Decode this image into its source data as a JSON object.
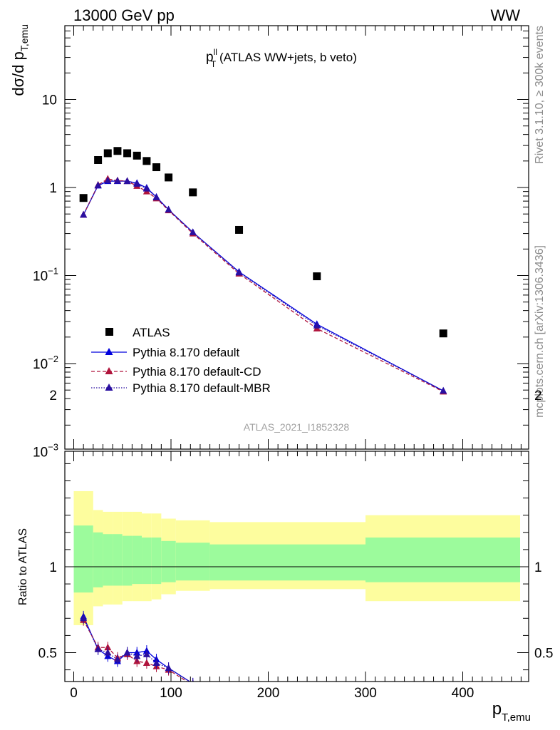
{
  "header": {
    "left": "13000 GeV pp",
    "right": "WW"
  },
  "side_labels": {
    "rivet": "Rivet 3.1.10, ≥ 300k events",
    "mcplots": "mcplots.cern.ch [arXiv:1306.3436]"
  },
  "watermark": "ATLAS_2021_I1852328",
  "chart_data": [
    {
      "type": "scatter",
      "title_main": "p",
      "title_sup": "ll",
      "title_sub": "T",
      "title_rest": " (ATLAS WW+jets, b veto)",
      "ylabel_main": "dσ/d p",
      "ylabel_sub": "T,emu",
      "y_log": true,
      "ylim": [
        0.001,
        40
      ],
      "xlim": [
        -10,
        460
      ],
      "y_ticks": [
        {
          "value": 10,
          "label": "10"
        },
        {
          "value": 1,
          "label": "1"
        },
        {
          "value": 0.1,
          "label": "10",
          "exp": "−1"
        },
        {
          "value": 0.01,
          "label": "10",
          "exp": "−2"
        },
        {
          "value": 0.001,
          "label": "10",
          "exp": "−3"
        }
      ],
      "series": [
        {
          "name": "ATLAS",
          "color": "#000000",
          "marker": "square",
          "x": [
            10,
            25,
            35,
            45,
            55,
            65,
            75,
            85,
            97.5,
            122.5,
            170,
            250,
            380
          ],
          "values": [
            0.76,
            2.05,
            2.45,
            2.6,
            2.45,
            2.3,
            2.0,
            1.7,
            1.3,
            0.88,
            0.33,
            0.098,
            0.022
          ]
        },
        {
          "name": "Pythia 8.170 default",
          "color": "#0000dd",
          "marker": "triangle",
          "line": "solid",
          "x": [
            10,
            25,
            35,
            45,
            55,
            65,
            75,
            85,
            97.5,
            122.5,
            170,
            250,
            380
          ],
          "values": [
            0.49,
            1.05,
            1.18,
            1.18,
            1.18,
            1.12,
            0.99,
            0.78,
            0.56,
            0.31,
            0.11,
            0.028,
            0.0049
          ]
        },
        {
          "name": "Pythia 8.170 default-CD",
          "color": "#b0143c",
          "marker": "triangle",
          "line": "dashed",
          "x": [
            10,
            25,
            35,
            45,
            55,
            65,
            75,
            85,
            97.5,
            122.5,
            170,
            250,
            380
          ],
          "values": [
            0.49,
            1.07,
            1.25,
            1.2,
            1.18,
            1.04,
            0.9,
            0.75,
            0.55,
            0.3,
            0.105,
            0.025,
            0.0048
          ]
        },
        {
          "name": "Pythia 8.170 default-MBR",
          "color": "#2a0fa0",
          "marker": "triangle",
          "line": "dotted",
          "x": [
            10,
            25,
            35,
            45,
            55,
            65,
            75,
            85,
            97.5,
            122.5,
            170,
            250,
            380
          ],
          "values": [
            0.49,
            1.06,
            1.2,
            1.19,
            1.18,
            1.1,
            0.97,
            0.77,
            0.56,
            0.31,
            0.108,
            0.027,
            0.0049
          ]
        }
      ],
      "legend_position": "lower-left"
    },
    {
      "type": "line",
      "ylabel": "Ratio to ATLAS",
      "xlabel_main": "p",
      "xlabel_sub": "T,emu",
      "xlim": [
        -10,
        460
      ],
      "ylim": [
        0.34,
        2.25
      ],
      "x_ticks": [
        0,
        100,
        200,
        300,
        400
      ],
      "y_ticks": [
        {
          "value": 0.5,
          "label": "0.5"
        },
        {
          "value": 1,
          "label": "1"
        },
        {
          "value": 2,
          "label": "2"
        }
      ],
      "bands": {
        "edges": [
          0,
          20,
          30,
          40,
          50,
          60,
          70,
          80,
          90,
          105,
          140,
          200,
          300,
          460
        ],
        "stat_lo": [
          0.85,
          0.88,
          0.89,
          0.89,
          0.89,
          0.9,
          0.9,
          0.9,
          0.91,
          0.92,
          0.92,
          0.92,
          0.91
        ],
        "stat_hi": [
          1.24,
          1.2,
          1.19,
          1.19,
          1.18,
          1.18,
          1.17,
          1.17,
          1.15,
          1.14,
          1.13,
          1.13,
          1.17
        ],
        "total_lo": [
          0.66,
          0.77,
          0.78,
          0.78,
          0.8,
          0.8,
          0.8,
          0.81,
          0.84,
          0.86,
          0.87,
          0.87,
          0.8
        ],
        "total_hi": [
          1.44,
          1.33,
          1.32,
          1.32,
          1.32,
          1.32,
          1.31,
          1.31,
          1.28,
          1.27,
          1.26,
          1.26,
          1.3
        ],
        "stat_color": "#9cfb9c",
        "total_color": "#fdfd9e"
      },
      "series": [
        {
          "name": "Pythia 8.170 default",
          "color": "#0000dd",
          "line": "solid",
          "x": [
            10,
            25,
            35,
            45,
            55,
            65,
            75,
            85,
            97.5,
            122.5
          ],
          "values": [
            0.71,
            0.52,
            0.48,
            0.45,
            0.5,
            0.5,
            0.51,
            0.46,
            0.41,
            0.32
          ]
        },
        {
          "name": "Pythia 8.170 default-CD",
          "color": "#b0143c",
          "line": "dashed",
          "x": [
            10,
            25,
            35,
            45,
            55,
            65,
            75,
            85,
            97.5,
            122.5
          ],
          "values": [
            0.69,
            0.53,
            0.53,
            0.47,
            0.49,
            0.45,
            0.44,
            0.42,
            0.4,
            0.31
          ]
        },
        {
          "name": "Pythia 8.170 default-MBR",
          "color": "#2a0fa0",
          "line": "dotted",
          "x": [
            10,
            25,
            35,
            45,
            55,
            65,
            75,
            85,
            97.5,
            122.5
          ],
          "values": [
            0.7,
            0.52,
            0.5,
            0.46,
            0.5,
            0.48,
            0.49,
            0.44,
            0.41,
            0.32
          ]
        }
      ]
    }
  ]
}
